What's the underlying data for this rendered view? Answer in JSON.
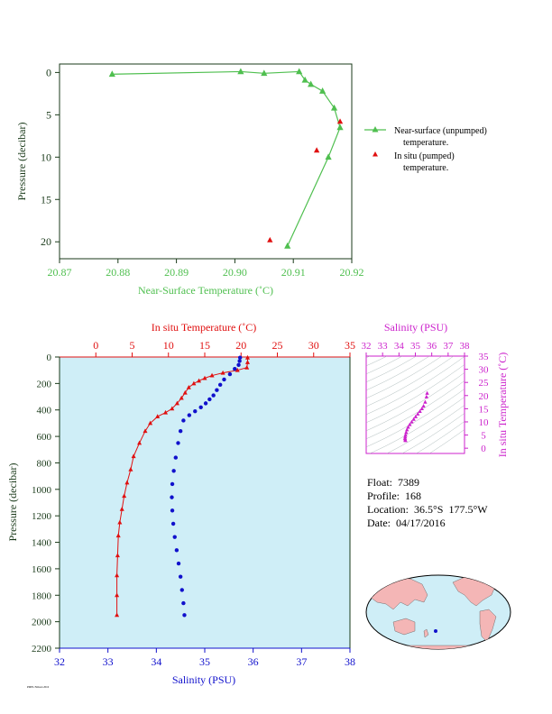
{
  "colors": {
    "green": "#4fbf4f",
    "red": "#e01010",
    "blue": "#1010cc",
    "magenta": "#cc22cc",
    "plot_bg": "#cfeef7",
    "dark_axis": "#1a3a1a"
  },
  "info": {
    "float": "Float:  7389",
    "profile": "Profile:  168",
    "location": "Location:  36.5°S  177.5°W",
    "date": "Date:  04/17/2016"
  },
  "footer": "PMEL/NOAA 2016",
  "chart_data": [
    {
      "type": "line",
      "xlabel": "Near-Surface Temperature (˚C)",
      "ylabel": "Pressure (decibar)",
      "xlim": [
        20.87,
        20.92
      ],
      "ylim": [
        22,
        -1
      ],
      "x_ticks": [
        "20.87",
        "20.88",
        "20.89",
        "20.90",
        "20.91",
        "20.92"
      ],
      "y_ticks": [
        "0",
        "5",
        "10",
        "15",
        "20"
      ],
      "legend_position": "right",
      "series": [
        {
          "name": "Near-surface (unpumped) temperature.",
          "legend_line1": "Near-surface (unpumped)",
          "legend_line2": "temperature.",
          "marker": "triangle",
          "line": true,
          "x": [
            20.879,
            20.901,
            20.905,
            20.911,
            20.912,
            20.913,
            20.915,
            20.917,
            20.918,
            20.916,
            20.909
          ],
          "y": [
            0.2,
            -0.1,
            0.1,
            -0.1,
            0.9,
            1.4,
            2.2,
            4.2,
            6.5,
            10.0,
            20.5
          ]
        },
        {
          "name": "In situ (pumped) temperature.",
          "legend_line1": "In situ (pumped)",
          "legend_line2": "temperature.",
          "marker": "triangle",
          "line": false,
          "x": [
            20.918,
            20.914,
            20.906
          ],
          "y": [
            5.8,
            9.2,
            19.8
          ]
        }
      ]
    },
    {
      "type": "scatter",
      "top_xlabel": "In situ Temperature (˚C)",
      "bottom_xlabel": "Salinity (PSU)",
      "ylabel": "Pressure (decibar)",
      "temp_lim": [
        -5,
        35
      ],
      "sal_lim": [
        32,
        38
      ],
      "ylim": [
        2200,
        0
      ],
      "temp_ticks": [
        "0",
        "5",
        "10",
        "15",
        "20",
        "25",
        "30",
        "35"
      ],
      "sal_ticks": [
        "32",
        "33",
        "34",
        "35",
        "36",
        "37",
        "38"
      ],
      "y_ticks": [
        "0",
        "200",
        "400",
        "600",
        "800",
        "1000",
        "1200",
        "1400",
        "1600",
        "1800",
        "2000",
        "2200"
      ],
      "series": [
        {
          "name": "temperature",
          "axis": "temperature",
          "marker": "triangle",
          "line": true,
          "x": [
            20.9,
            20.9,
            20.8,
            19.5,
            17.5,
            16.0,
            15.0,
            14.2,
            13.5,
            12.8,
            12.3,
            11.8,
            11.2,
            10.5,
            9.6,
            8.5,
            7.5,
            6.8,
            6.0,
            5.2,
            4.8,
            4.3,
            3.9,
            3.6,
            3.3,
            3.1,
            3.0,
            2.9,
            2.9,
            2.9
          ],
          "y": [
            5,
            40,
            80,
            100,
            120,
            140,
            160,
            180,
            200,
            230,
            270,
            310,
            350,
            390,
            420,
            450,
            500,
            560,
            650,
            750,
            850,
            950,
            1050,
            1150,
            1250,
            1350,
            1500,
            1650,
            1800,
            1950
          ]
        },
        {
          "name": "salinity",
          "axis": "salinity",
          "marker": "circle",
          "line": false,
          "x": [
            35.73,
            35.72,
            35.7,
            35.62,
            35.52,
            35.4,
            35.32,
            35.25,
            35.18,
            35.1,
            35.02,
            34.92,
            34.8,
            34.68,
            34.56,
            34.5,
            34.45,
            34.4,
            34.36,
            34.33,
            34.32,
            34.33,
            34.35,
            34.38,
            34.42,
            34.46,
            34.5,
            34.53,
            34.56,
            34.58
          ],
          "y": [
            5,
            30,
            60,
            90,
            130,
            170,
            210,
            250,
            290,
            320,
            350,
            380,
            410,
            440,
            480,
            560,
            650,
            760,
            860,
            960,
            1060,
            1160,
            1260,
            1360,
            1460,
            1560,
            1660,
            1760,
            1860,
            1950
          ]
        }
      ]
    },
    {
      "type": "scatter",
      "top_xlabel": "Salinity (PSU)",
      "ylabel": "In situ Temperature (˚C)",
      "sal_lim": [
        32,
        38
      ],
      "temp_lim": [
        -2,
        35
      ],
      "sal_ticks": [
        "32",
        "33",
        "34",
        "35",
        "36",
        "37",
        "38"
      ],
      "temp_ticks": [
        "0",
        "5",
        "10",
        "15",
        "20",
        "25",
        "30",
        "35"
      ],
      "series": [
        {
          "name": "T-S",
          "marker": "triangle",
          "x": [
            35.72,
            35.68,
            35.6,
            35.5,
            35.4,
            35.28,
            35.15,
            35.02,
            34.9,
            34.78,
            34.66,
            34.56,
            34.49,
            34.44,
            34.4,
            34.38,
            34.37,
            34.38,
            34.4
          ],
          "y": [
            20.9,
            19.5,
            17.5,
            16.0,
            15.0,
            14.0,
            13.0,
            12.0,
            11.0,
            10.0,
            9.0,
            8.0,
            7.0,
            6.0,
            5.0,
            4.3,
            3.7,
            3.2,
            2.9
          ]
        }
      ]
    }
  ]
}
